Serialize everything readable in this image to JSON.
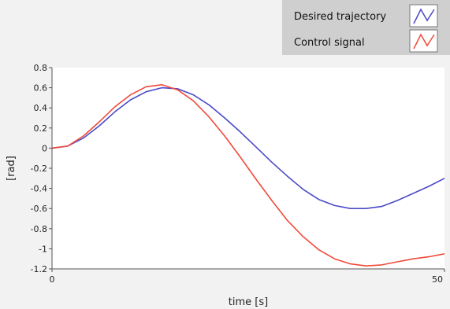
{
  "chart_data": {
    "type": "line",
    "xlabel": "time [s]",
    "ylabel": "[rad]",
    "xlim": [
      0,
      50
    ],
    "ylim": [
      -1.2,
      0.8
    ],
    "x_ticks": [
      "0",
      "50"
    ],
    "y_ticks": [
      "0.8",
      "0.6",
      "0.4",
      "0.2",
      "0",
      "-0.2",
      "-0.4",
      "-0.6",
      "-0.8",
      "-1",
      "-1.2"
    ],
    "grid": false,
    "legend_position": "top-right",
    "series": [
      {
        "name": "Desired trajectory",
        "color": "#4a4ac8",
        "x": [
          0,
          2,
          4,
          6,
          8,
          10,
          12,
          14,
          16,
          18,
          20,
          22,
          24,
          26,
          28,
          30,
          32,
          34,
          36,
          38,
          40,
          42,
          44,
          46,
          48,
          50
        ],
        "y": [
          0,
          0.02,
          0.1,
          0.22,
          0.36,
          0.48,
          0.56,
          0.6,
          0.59,
          0.53,
          0.43,
          0.3,
          0.16,
          0.01,
          -0.14,
          -0.28,
          -0.41,
          -0.51,
          -0.57,
          -0.6,
          -0.6,
          -0.58,
          -0.52,
          -0.45,
          -0.38,
          -0.3
        ]
      },
      {
        "name": "Control signal",
        "color": "#f04a3a",
        "x": [
          0,
          2,
          4,
          6,
          8,
          10,
          12,
          14,
          16,
          18,
          20,
          22,
          24,
          26,
          28,
          30,
          32,
          34,
          36,
          38,
          40,
          42,
          44,
          46,
          48,
          50
        ],
        "y": [
          0,
          0.02,
          0.12,
          0.26,
          0.41,
          0.53,
          0.61,
          0.63,
          0.58,
          0.47,
          0.31,
          0.12,
          -0.09,
          -0.31,
          -0.52,
          -0.72,
          -0.88,
          -1.01,
          -1.1,
          -1.15,
          -1.17,
          -1.16,
          -1.13,
          -1.1,
          -1.08,
          -1.05
        ]
      }
    ]
  }
}
